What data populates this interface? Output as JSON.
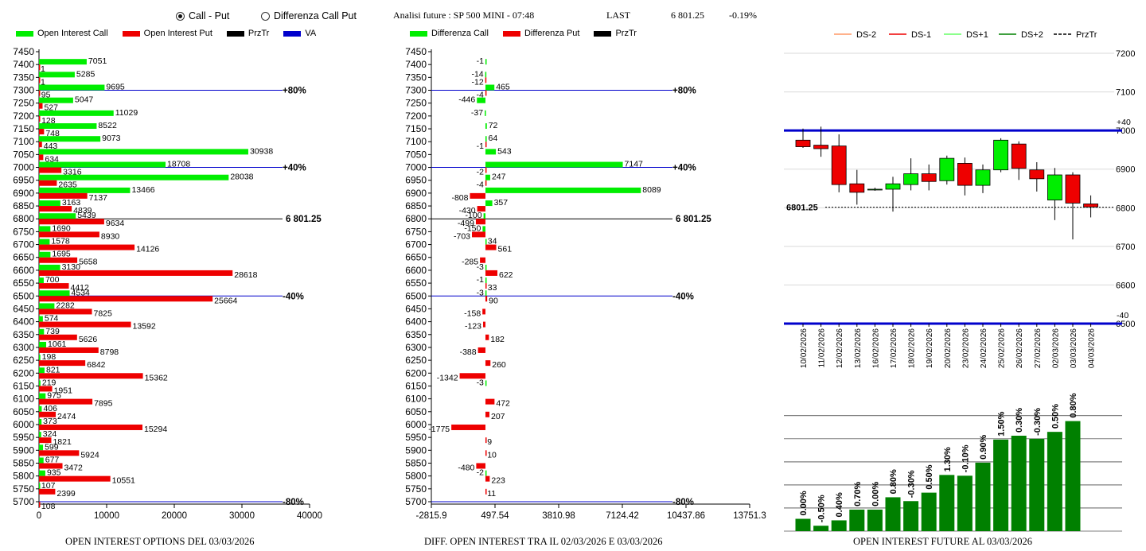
{
  "header": {
    "radio_call_put": "Call - Put",
    "radio_diff": "Differenza Call Put",
    "title": "Analisi future : SP 500 MINI - 07:48",
    "last_label": "LAST",
    "last_value": "6 801.25",
    "change": "-0.19%"
  },
  "colors": {
    "green": "#00ee00",
    "red": "#ee0000",
    "blue": "#0000cc",
    "dark_green": "#008000"
  },
  "chart_data": [
    {
      "type": "bar",
      "orientation": "horizontal",
      "title": "OPEN INTEREST OPTIONS DEL 03/03/2026",
      "legend": [
        "Open Interest Call",
        "Open Interest Put",
        "PrzTr",
        "VA"
      ],
      "strikes": [
        7450,
        7400,
        7350,
        7300,
        7250,
        7200,
        7150,
        7100,
        7050,
        7000,
        6950,
        6900,
        6850,
        6800,
        6750,
        6700,
        6650,
        6600,
        6550,
        6500,
        6450,
        6400,
        6350,
        6300,
        6250,
        6200,
        6150,
        6100,
        6050,
        6000,
        5950,
        5900,
        5850,
        5800,
        5750,
        5700
      ],
      "series": [
        {
          "name": "Open Interest Call",
          "values": [
            null,
            7051,
            5285,
            9695,
            5047,
            11029,
            8522,
            9073,
            30938,
            18708,
            28038,
            13466,
            3163,
            5439,
            1690,
            1578,
            1695,
            3130,
            700,
            4534,
            2282,
            574,
            739,
            1061,
            198,
            821,
            219,
            975,
            406,
            373,
            324,
            599,
            677,
            935,
            107,
            null
          ]
        },
        {
          "name": "Open Interest Put",
          "values": [
            null,
            1,
            1,
            95,
            527,
            128,
            748,
            443,
            634,
            3316,
            2635,
            7137,
            4839,
            9634,
            8930,
            14126,
            5658,
            28618,
            4412,
            25664,
            7825,
            13592,
            5626,
            8798,
            6842,
            15362,
            1951,
            7895,
            2474,
            15294,
            1821,
            5924,
            3472,
            10551,
            2399,
            108
          ]
        }
      ],
      "xlim": [
        0,
        40000
      ],
      "xticks": [
        "0",
        "10000",
        "20000",
        "30000",
        "40000"
      ],
      "reference_lines": [
        {
          "strike": 7300,
          "label": "+80%",
          "color": "blue"
        },
        {
          "strike": 7000,
          "label": "+40%",
          "color": "blue"
        },
        {
          "strike": 6800,
          "label": "6 801.25",
          "color": "black"
        },
        {
          "strike": 6500,
          "label": "-40%",
          "color": "blue"
        },
        {
          "strike": 5700,
          "label": "-80%",
          "color": "blue"
        }
      ]
    },
    {
      "type": "bar",
      "orientation": "horizontal",
      "title": "DIFF. OPEN INTEREST TRA IL 02/03/2026 E 03/03/2026",
      "legend": [
        "Differenza Call",
        "Differenza Put",
        "PrzTr"
      ],
      "strikes": [
        7450,
        7400,
        7350,
        7300,
        7250,
        7200,
        7150,
        7100,
        7050,
        7000,
        6950,
        6900,
        6850,
        6800,
        6750,
        6700,
        6650,
        6600,
        6550,
        6500,
        6450,
        6400,
        6350,
        6300,
        6250,
        6200,
        6150,
        6100,
        6050,
        6000,
        5950,
        5900,
        5850,
        5800,
        5750,
        5700
      ],
      "series": [
        {
          "name": "Differenza Call",
          "values": [
            null,
            -1,
            -14,
            465,
            -446,
            -37,
            72,
            64,
            543,
            7147,
            247,
            8089,
            357,
            -100,
            -150,
            34,
            null,
            -3,
            -1,
            -3,
            null,
            null,
            null,
            null,
            null,
            null,
            -3,
            null,
            null,
            null,
            null,
            null,
            null,
            -2,
            null,
            null
          ]
        },
        {
          "name": "Differenza Put",
          "values": [
            null,
            null,
            -12,
            -4,
            null,
            null,
            null,
            -1,
            null,
            -2,
            -4,
            -808,
            -430,
            -499,
            -703,
            561,
            -285,
            622,
            33,
            90,
            -158,
            -123,
            182,
            -388,
            260,
            -1342,
            null,
            472,
            207,
            -1775,
            9,
            10,
            -480,
            223,
            11,
            null
          ]
        }
      ],
      "xlim": [
        -2815.9,
        13751.3
      ],
      "xticks": [
        "-2815.9",
        "497.54",
        "3810.98",
        "7124.42",
        "10437.86",
        "13751.3"
      ],
      "reference_lines": [
        {
          "strike": 7300,
          "label": "+80%",
          "color": "blue"
        },
        {
          "strike": 7000,
          "label": "+40%",
          "color": "blue"
        },
        {
          "strike": 6800,
          "label": "6 801.25",
          "color": "black"
        },
        {
          "strike": 6500,
          "label": "-40%",
          "color": "blue"
        },
        {
          "strike": 5700,
          "label": "-80%",
          "color": "blue"
        }
      ]
    },
    {
      "type": "candlestick",
      "legend": [
        "DS-2",
        "DS-1",
        "DS+1",
        "DS+2",
        "PrzTr"
      ],
      "dates": [
        "10/02/2026",
        "11/02/2026",
        "12/02/2026",
        "13/02/2026",
        "16/02/2026",
        "17/02/2026",
        "18/02/2026",
        "19/02/2026",
        "20/02/2026",
        "23/02/2026",
        "24/02/2026",
        "25/02/2026",
        "26/02/2026",
        "27/02/2026",
        "02/03/2026",
        "03/03/2026",
        "04/03/2026"
      ],
      "ohlc": [
        [
          6975,
          7005,
          6955,
          6958
        ],
        [
          6962,
          7010,
          6932,
          6953
        ],
        [
          6960,
          6990,
          6840,
          6860
        ],
        [
          6862,
          6898,
          6808,
          6840
        ],
        [
          6848,
          6852,
          6844,
          6848
        ],
        [
          6848,
          6880,
          6790,
          6862
        ],
        [
          6860,
          6928,
          6845,
          6888
        ],
        [
          6888,
          6912,
          6845,
          6868
        ],
        [
          6870,
          6935,
          6860,
          6928
        ],
        [
          6915,
          6930,
          6832,
          6858
        ],
        [
          6858,
          6912,
          6838,
          6898
        ],
        [
          6898,
          6980,
          6892,
          6975
        ],
        [
          6965,
          6972,
          6872,
          6902
        ],
        [
          6898,
          6918,
          6842,
          6875
        ],
        [
          6820,
          6903,
          6768,
          6885
        ],
        [
          6885,
          6892,
          6718,
          6812
        ],
        [
          6810,
          6832,
          6775,
          6802
        ]
      ],
      "ylim": [
        6500,
        7200
      ],
      "yticks": [
        "7200",
        "7100",
        "7000",
        "6900",
        "6800",
        "6700",
        "6600",
        "6500"
      ],
      "levels": [
        {
          "value": 7000,
          "label": "+40"
        },
        {
          "value": 6500,
          "label": "-40"
        }
      ],
      "last": 6801.25,
      "last_label": "6801.25"
    },
    {
      "type": "bar",
      "title": "OPEN INTEREST FUTURE AL 03/03/2026",
      "categories": [
        "10/02/2026",
        "11/02/2026",
        "12/02/2026",
        "13/02/2026",
        "16/02/2026",
        "17/02/2026",
        "18/02/2026",
        "19/02/2026",
        "20/02/2026",
        "23/02/2026",
        "24/02/2026",
        "25/02/2026",
        "26/02/2026",
        "27/02/2026",
        "02/03/2026",
        "03/03/2026",
        "04/03/2026"
      ],
      "values": [
        16,
        7,
        14,
        28,
        28,
        44,
        39,
        50,
        73,
        72,
        89,
        119,
        124,
        120,
        129,
        143
      ],
      "labels": [
        "0.00%",
        "-0.50%",
        "0.40%",
        "0.70%",
        "0.00%",
        "0.80%",
        "-0.30%",
        "0.50%",
        "1.30%",
        "-0.10%",
        "0.90%",
        "1.50%",
        "0.30%",
        "-0.30%",
        "0.50%",
        "0.80%"
      ],
      "ylim": [
        0,
        155
      ]
    }
  ]
}
